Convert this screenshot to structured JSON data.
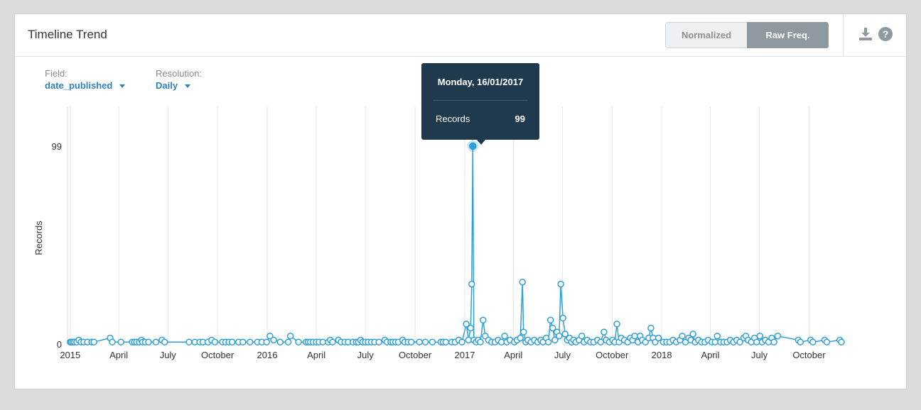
{
  "card": {
    "title": "Timeline Trend",
    "toggle": {
      "normalized": "Normalized",
      "raw": "Raw Freq."
    },
    "icons": {
      "download": "download-icon",
      "help": "help-icon"
    }
  },
  "controls": {
    "field_label": "Field:",
    "field_value": "date_published",
    "resolution_label": "Resolution:",
    "resolution_value": "Daily"
  },
  "tooltip": {
    "date": "Monday, 16/01/2017",
    "series_label": "Records",
    "value": "99"
  },
  "colors": {
    "series": "#2f9fd8",
    "accent": "#2f7fc1",
    "tooltip_bg": "#1e3a4c",
    "active_toggle": "#8e9aa0"
  },
  "chart_data": {
    "type": "line",
    "ylabel": "Records",
    "ylim": [
      0,
      99
    ],
    "yticks": [
      0,
      99
    ],
    "xlim": [
      "2014-12-27",
      "2018-12-25"
    ],
    "x_ticks": [
      {
        "label": "2015",
        "date": "2015-01-01"
      },
      {
        "label": "April",
        "date": "2015-04-01"
      },
      {
        "label": "July",
        "date": "2015-07-01"
      },
      {
        "label": "October",
        "date": "2015-10-01"
      },
      {
        "label": "2016",
        "date": "2016-01-01"
      },
      {
        "label": "April",
        "date": "2016-04-01"
      },
      {
        "label": "July",
        "date": "2016-07-01"
      },
      {
        "label": "October",
        "date": "2016-10-01"
      },
      {
        "label": "2017",
        "date": "2017-01-01"
      },
      {
        "label": "April",
        "date": "2017-04-01"
      },
      {
        "label": "July",
        "date": "2017-07-01"
      },
      {
        "label": "October",
        "date": "2017-10-01"
      },
      {
        "label": "2018",
        "date": "2018-01-01"
      },
      {
        "label": "April",
        "date": "2018-04-01"
      },
      {
        "label": "July",
        "date": "2018-07-01"
      },
      {
        "label": "October",
        "date": "2018-10-01"
      }
    ],
    "grid": true,
    "series": [
      {
        "color": "#2f9fd8",
        "points": [
          [
            "2015-01-01",
            1
          ],
          [
            "2015-01-03",
            1
          ],
          [
            "2015-01-06",
            1
          ],
          [
            "2015-01-09",
            1
          ],
          [
            "2015-01-13",
            1
          ],
          [
            "2015-01-17",
            2
          ],
          [
            "2015-01-21",
            1
          ],
          [
            "2015-01-26",
            1
          ],
          [
            "2015-02-02",
            1
          ],
          [
            "2015-02-10",
            1
          ],
          [
            "2015-02-14",
            1
          ],
          [
            "2015-03-16",
            3
          ],
          [
            "2015-03-20",
            1
          ],
          [
            "2015-04-05",
            1
          ],
          [
            "2015-04-26",
            1
          ],
          [
            "2015-04-30",
            1
          ],
          [
            "2015-05-04",
            1
          ],
          [
            "2015-05-09",
            1
          ],
          [
            "2015-05-13",
            2
          ],
          [
            "2015-05-15",
            1
          ],
          [
            "2015-05-20",
            1
          ],
          [
            "2015-05-26",
            1
          ],
          [
            "2015-06-09",
            1
          ],
          [
            "2015-06-20",
            2
          ],
          [
            "2015-06-25",
            1
          ],
          [
            "2015-08-09",
            1
          ],
          [
            "2015-08-20",
            1
          ],
          [
            "2015-08-29",
            1
          ],
          [
            "2015-09-04",
            1
          ],
          [
            "2015-09-13",
            1
          ],
          [
            "2015-09-20",
            2
          ],
          [
            "2015-09-26",
            1
          ],
          [
            "2015-10-10",
            1
          ],
          [
            "2015-10-16",
            1
          ],
          [
            "2015-10-22",
            1
          ],
          [
            "2015-10-28",
            1
          ],
          [
            "2015-11-09",
            1
          ],
          [
            "2015-11-17",
            1
          ],
          [
            "2015-11-30",
            1
          ],
          [
            "2015-12-14",
            1
          ],
          [
            "2015-12-22",
            1
          ],
          [
            "2015-12-31",
            1
          ],
          [
            "2016-01-06",
            4
          ],
          [
            "2016-01-13",
            2
          ],
          [
            "2016-01-25",
            1
          ],
          [
            "2016-02-09",
            1
          ],
          [
            "2016-02-13",
            4
          ],
          [
            "2016-02-28",
            1
          ],
          [
            "2016-03-13",
            1
          ],
          [
            "2016-03-17",
            1
          ],
          [
            "2016-03-21",
            1
          ],
          [
            "2016-03-26",
            1
          ],
          [
            "2016-04-01",
            1
          ],
          [
            "2016-04-06",
            1
          ],
          [
            "2016-04-13",
            1
          ],
          [
            "2016-04-23",
            1
          ],
          [
            "2016-04-27",
            2
          ],
          [
            "2016-05-01",
            1
          ],
          [
            "2016-05-12",
            2
          ],
          [
            "2016-05-17",
            1
          ],
          [
            "2016-05-24",
            1
          ],
          [
            "2016-05-30",
            1
          ],
          [
            "2016-06-08",
            1
          ],
          [
            "2016-06-14",
            1
          ],
          [
            "2016-06-18",
            1
          ],
          [
            "2016-06-22",
            2
          ],
          [
            "2016-06-26",
            1
          ],
          [
            "2016-07-01",
            1
          ],
          [
            "2016-07-06",
            1
          ],
          [
            "2016-07-12",
            1
          ],
          [
            "2016-07-18",
            1
          ],
          [
            "2016-07-26",
            1
          ],
          [
            "2016-08-06",
            2
          ],
          [
            "2016-08-10",
            1
          ],
          [
            "2016-08-17",
            1
          ],
          [
            "2016-08-21",
            1
          ],
          [
            "2016-08-26",
            1
          ],
          [
            "2016-08-31",
            1
          ],
          [
            "2016-09-08",
            2
          ],
          [
            "2016-09-12",
            1
          ],
          [
            "2016-09-18",
            1
          ],
          [
            "2016-09-24",
            1
          ],
          [
            "2016-10-09",
            1
          ],
          [
            "2016-10-20",
            1
          ],
          [
            "2016-11-02",
            1
          ],
          [
            "2016-11-18",
            1
          ],
          [
            "2016-11-22",
            1
          ],
          [
            "2016-11-27",
            1
          ],
          [
            "2016-12-08",
            1
          ],
          [
            "2016-12-14",
            1
          ],
          [
            "2016-12-21",
            2
          ],
          [
            "2016-12-27",
            1
          ],
          [
            "2017-01-04",
            10
          ],
          [
            "2017-01-08",
            2
          ],
          [
            "2017-01-12",
            8
          ],
          [
            "2017-01-14",
            30
          ],
          [
            "2017-01-16",
            99
          ],
          [
            "2017-01-18",
            2
          ],
          [
            "2017-01-22",
            1
          ],
          [
            "2017-01-26",
            2
          ],
          [
            "2017-01-30",
            1
          ],
          [
            "2017-02-04",
            12
          ],
          [
            "2017-02-08",
            4
          ],
          [
            "2017-02-14",
            2
          ],
          [
            "2017-02-20",
            1
          ],
          [
            "2017-02-26",
            1
          ],
          [
            "2017-03-04",
            2
          ],
          [
            "2017-03-10",
            1
          ],
          [
            "2017-03-16",
            4
          ],
          [
            "2017-03-20",
            1
          ],
          [
            "2017-03-26",
            2
          ],
          [
            "2017-04-03",
            1
          ],
          [
            "2017-04-08",
            2
          ],
          [
            "2017-04-14",
            3
          ],
          [
            "2017-04-18",
            31
          ],
          [
            "2017-04-20",
            6
          ],
          [
            "2017-04-24",
            1
          ],
          [
            "2017-04-28",
            2
          ],
          [
            "2017-05-04",
            1
          ],
          [
            "2017-05-10",
            2
          ],
          [
            "2017-05-16",
            1
          ],
          [
            "2017-05-22",
            2
          ],
          [
            "2017-05-26",
            1
          ],
          [
            "2017-06-01",
            3
          ],
          [
            "2017-06-05",
            1
          ],
          [
            "2017-06-09",
            12
          ],
          [
            "2017-06-13",
            8
          ],
          [
            "2017-06-17",
            2
          ],
          [
            "2017-06-21",
            6
          ],
          [
            "2017-06-25",
            4
          ],
          [
            "2017-06-28",
            30
          ],
          [
            "2017-07-02",
            13
          ],
          [
            "2017-07-06",
            5
          ],
          [
            "2017-07-10",
            2
          ],
          [
            "2017-07-14",
            3
          ],
          [
            "2017-07-18",
            1
          ],
          [
            "2017-07-22",
            2
          ],
          [
            "2017-07-26",
            1
          ],
          [
            "2017-08-01",
            2
          ],
          [
            "2017-08-06",
            4
          ],
          [
            "2017-08-10",
            1
          ],
          [
            "2017-08-16",
            2
          ],
          [
            "2017-08-22",
            1
          ],
          [
            "2017-08-28",
            1
          ],
          [
            "2017-09-04",
            2
          ],
          [
            "2017-09-10",
            1
          ],
          [
            "2017-09-16",
            6
          ],
          [
            "2017-09-20",
            2
          ],
          [
            "2017-09-26",
            1
          ],
          [
            "2017-10-02",
            2
          ],
          [
            "2017-10-06",
            1
          ],
          [
            "2017-10-10",
            10
          ],
          [
            "2017-10-14",
            1
          ],
          [
            "2017-10-18",
            3
          ],
          [
            "2017-10-24",
            2
          ],
          [
            "2017-10-30",
            1
          ],
          [
            "2017-11-04",
            3
          ],
          [
            "2017-11-08",
            2
          ],
          [
            "2017-11-12",
            4
          ],
          [
            "2017-11-18",
            1
          ],
          [
            "2017-11-22",
            4
          ],
          [
            "2017-11-26",
            2
          ],
          [
            "2017-12-02",
            1
          ],
          [
            "2017-12-08",
            3
          ],
          [
            "2017-12-12",
            8
          ],
          [
            "2017-12-16",
            3
          ],
          [
            "2017-12-20",
            1
          ],
          [
            "2017-12-26",
            3
          ],
          [
            "2018-01-04",
            1
          ],
          [
            "2018-01-10",
            1
          ],
          [
            "2018-01-16",
            1
          ],
          [
            "2018-01-22",
            2
          ],
          [
            "2018-01-28",
            1
          ],
          [
            "2018-02-04",
            2
          ],
          [
            "2018-02-08",
            4
          ],
          [
            "2018-02-14",
            1
          ],
          [
            "2018-02-20",
            3
          ],
          [
            "2018-02-24",
            2
          ],
          [
            "2018-02-28",
            5
          ],
          [
            "2018-03-04",
            1
          ],
          [
            "2018-03-10",
            2
          ],
          [
            "2018-03-16",
            1
          ],
          [
            "2018-03-22",
            1
          ],
          [
            "2018-03-28",
            2
          ],
          [
            "2018-04-04",
            1
          ],
          [
            "2018-04-10",
            1
          ],
          [
            "2018-04-14",
            4
          ],
          [
            "2018-04-20",
            1
          ],
          [
            "2018-04-26",
            1
          ],
          [
            "2018-05-02",
            1
          ],
          [
            "2018-05-08",
            2
          ],
          [
            "2018-05-14",
            1
          ],
          [
            "2018-05-20",
            2
          ],
          [
            "2018-05-26",
            1
          ],
          [
            "2018-06-02",
            3
          ],
          [
            "2018-06-06",
            4
          ],
          [
            "2018-06-10",
            2
          ],
          [
            "2018-06-16",
            1
          ],
          [
            "2018-06-22",
            3
          ],
          [
            "2018-06-26",
            1
          ],
          [
            "2018-07-02",
            4
          ],
          [
            "2018-07-06",
            1
          ],
          [
            "2018-07-12",
            2
          ],
          [
            "2018-07-18",
            1
          ],
          [
            "2018-07-24",
            3
          ],
          [
            "2018-07-28",
            1
          ],
          [
            "2018-08-04",
            4
          ],
          [
            "2018-09-11",
            2
          ],
          [
            "2018-09-15",
            1
          ],
          [
            "2018-10-04",
            2
          ],
          [
            "2018-10-08",
            1
          ],
          [
            "2018-10-30",
            2
          ],
          [
            "2018-11-03",
            1
          ],
          [
            "2018-11-27",
            2
          ],
          [
            "2018-11-30",
            1
          ]
        ]
      }
    ],
    "highlight": {
      "date": "2017-01-16",
      "value": 99
    }
  }
}
